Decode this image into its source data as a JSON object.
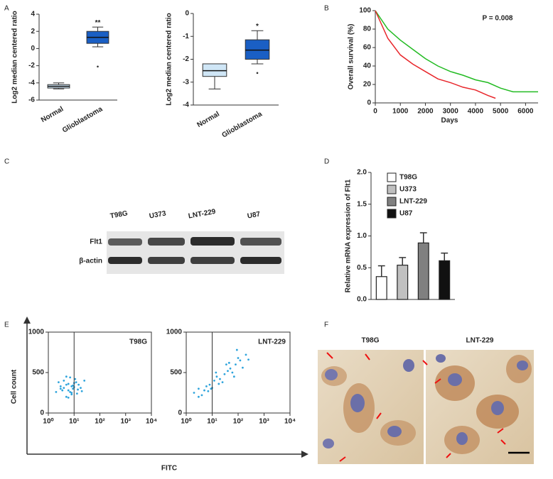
{
  "panel_letters": [
    "A",
    "B",
    "C",
    "D",
    "E",
    "F"
  ],
  "blot": {
    "lanes": [
      "T98G",
      "U373",
      "LNT-229",
      "U87"
    ],
    "rows": [
      "Flt1",
      "β-actin"
    ]
  },
  "panel_e": {
    "ylabel": "Cell count",
    "xlabel": "FITC"
  },
  "micrographs": {
    "labels": [
      "T98G",
      "LNT-229"
    ]
  },
  "chart_data": [
    {
      "type": "box",
      "ylabel": "Log2 median centered ratio",
      "categories": [
        "Normal",
        "Glioblastoma"
      ],
      "ylim": [
        -6,
        4
      ],
      "yticks": [
        -6,
        -4,
        -2,
        0,
        2,
        4
      ],
      "boxes": [
        {
          "color": "#cfe6f6",
          "min": -4.7,
          "q1": -4.6,
          "median": -4.4,
          "q3": -4.2,
          "max": -4.0,
          "outliers": []
        },
        {
          "color": "#1a5fc4",
          "min": 0.2,
          "q1": 0.6,
          "median": 1.3,
          "q3": 2.0,
          "max": 2.5,
          "outliers": [
            -2.1
          ],
          "label": "**"
        }
      ]
    },
    {
      "type": "box",
      "ylabel": "Log2 median centered ratio",
      "categories": [
        "Normal",
        "Glioblastoma"
      ],
      "ylim": [
        -4,
        0
      ],
      "yticks": [
        -4,
        -3,
        -2,
        -1,
        0
      ],
      "boxes": [
        {
          "color": "#cfe6f6",
          "min": -3.3,
          "q1": -2.75,
          "median": -2.5,
          "q3": -2.2,
          "max": -2.2,
          "outliers": []
        },
        {
          "color": "#1a5fc4",
          "min": -2.2,
          "q1": -2.0,
          "median": -1.6,
          "q3": -1.15,
          "max": -0.75,
          "outliers": [
            -2.6
          ],
          "label": "*"
        }
      ]
    },
    {
      "type": "line",
      "ylabel": "Overall survival (%)",
      "xlabel": "Days",
      "annotation": "P = 0.008",
      "xlim": [
        0,
        6500
      ],
      "xticks": [
        0,
        1000,
        2000,
        3000,
        4000,
        5000,
        6000
      ],
      "ylim": [
        0,
        100
      ],
      "yticks": [
        0,
        20,
        40,
        60,
        80,
        100
      ],
      "series": [
        {
          "color": "#22bb22",
          "x": [
            0,
            500,
            1000,
            1500,
            2000,
            2500,
            3000,
            3500,
            4000,
            4500,
            5000,
            5500,
            6000,
            6500
          ],
          "values": [
            100,
            80,
            68,
            58,
            48,
            40,
            34,
            30,
            25,
            22,
            16,
            12,
            12,
            12
          ]
        },
        {
          "color": "#e8262b",
          "x": [
            0,
            500,
            1000,
            1500,
            2000,
            2500,
            3000,
            3500,
            4000,
            4500,
            4800
          ],
          "values": [
            100,
            70,
            52,
            42,
            34,
            26,
            22,
            17,
            14,
            8,
            5
          ]
        }
      ]
    },
    {
      "type": "bar",
      "ylabel": "Relative mRNA expression of Flt1",
      "categories": [
        "T98G",
        "U373",
        "LNT-229",
        "U87"
      ],
      "values": [
        0.36,
        0.54,
        0.89,
        0.61
      ],
      "error": [
        0.17,
        0.12,
        0.16,
        0.12
      ],
      "colors": [
        "#ffffff",
        "#c0c0c0",
        "#808080",
        "#111111"
      ],
      "ylim": [
        0,
        2
      ],
      "yticks": [
        {
          "value": 0,
          "label": "0.0"
        },
        {
          "value": 0.5,
          "label": "0.5"
        },
        {
          "value": 1,
          "label": "1.0"
        },
        {
          "value": 1.5,
          "label": "1.5"
        },
        {
          "value": 2,
          "label": "2.0"
        }
      ]
    },
    {
      "type": "scatter",
      "title": "T98G",
      "log_x": true,
      "gate_x": 10,
      "color": "#2fa4dc",
      "xlim": [
        1,
        10000
      ],
      "xticks": [
        {
          "value": 1,
          "label": "10⁰"
        },
        {
          "value": 10,
          "label": "10¹"
        },
        {
          "value": 100,
          "label": "10²"
        },
        {
          "value": 1000,
          "label": "10³"
        },
        {
          "value": 10000,
          "label": "10⁴"
        }
      ],
      "ylim": [
        0,
        1000
      ],
      "yticks": [
        0,
        500,
        1000
      ],
      "x": [
        3,
        5,
        8,
        4,
        6,
        10,
        12,
        2,
        7,
        9,
        15,
        5,
        3,
        20,
        6,
        8,
        11,
        4,
        2.5,
        14,
        7,
        9,
        5,
        18,
        25,
        6,
        3.5,
        10,
        13,
        8
      ],
      "values": [
        300,
        350,
        250,
        400,
        280,
        320,
        380,
        260,
        440,
        300,
        350,
        200,
        330,
        270,
        360,
        230,
        420,
        310,
        380,
        290,
        260,
        340,
        450,
        310,
        400,
        190,
        280,
        370,
        240,
        330
      ]
    },
    {
      "type": "scatter",
      "title": "LNT-229",
      "log_x": true,
      "gate_x": 10,
      "color": "#2fa4dc",
      "xlim": [
        1,
        10000
      ],
      "xticks": [
        {
          "value": 1,
          "label": "10⁰"
        },
        {
          "value": 10,
          "label": "10¹"
        },
        {
          "value": 100,
          "label": "10²"
        },
        {
          "value": 1000,
          "label": "10³"
        },
        {
          "value": 10000,
          "label": "10⁴"
        }
      ],
      "ylim": [
        0,
        1000
      ],
      "yticks": [
        0,
        500,
        1000
      ],
      "x": [
        2,
        3,
        5,
        8,
        12,
        20,
        30,
        50,
        80,
        120,
        200,
        4,
        6,
        10,
        15,
        25,
        40,
        60,
        100,
        150,
        3,
        7,
        18,
        35,
        70,
        9,
        14,
        45,
        90,
        250
      ],
      "values": [
        250,
        300,
        280,
        350,
        400,
        420,
        480,
        550,
        600,
        650,
        720,
        220,
        330,
        310,
        450,
        380,
        520,
        500,
        680,
        560,
        200,
        270,
        360,
        600,
        450,
        300,
        500,
        620,
        780,
        660
      ]
    }
  ]
}
